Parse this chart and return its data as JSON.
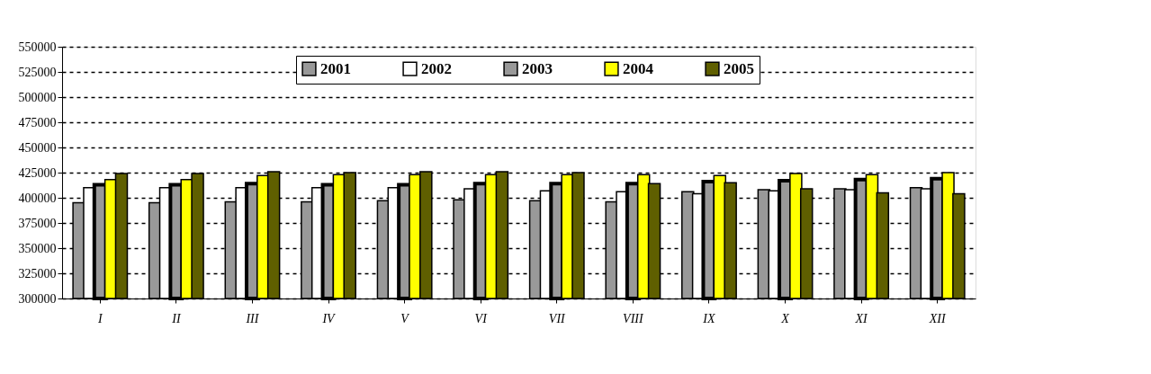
{
  "chart_data": {
    "type": "bar",
    "categories": [
      "I",
      "II",
      "III",
      "IV",
      "V",
      "VI",
      "VII",
      "VIII",
      "IX",
      "X",
      "XI",
      "XII"
    ],
    "series": [
      {
        "name": "2001",
        "color": "#999999",
        "values": [
          395000,
          395000,
          396000,
          396000,
          397000,
          398000,
          397000,
          396000,
          406000,
          408000,
          409000,
          410000
        ]
      },
      {
        "name": "2002",
        "color": "#ffffff",
        "values": [
          410000,
          410000,
          410000,
          410000,
          410000,
          409000,
          407000,
          406000,
          404000,
          407000,
          408000,
          409000
        ]
      },
      {
        "name": "2003",
        "color": "#999999",
        "values": [
          413000,
          413000,
          414000,
          413000,
          413000,
          414000,
          414000,
          414000,
          416000,
          417000,
          418000,
          419000
        ]
      },
      {
        "name": "2004",
        "color": "#ffff00",
        "values": [
          418000,
          418000,
          422000,
          423000,
          423000,
          423000,
          423000,
          423000,
          422000,
          424000,
          423000,
          425000
        ]
      },
      {
        "name": "2005",
        "color": "#5f5f00",
        "values": [
          424000,
          424000,
          426000,
          425000,
          426000,
          426000,
          425000,
          414000,
          415000,
          409000,
          405000,
          404000
        ]
      }
    ],
    "ylim": [
      300000,
      550000
    ],
    "yticks": [
      300000,
      325000,
      350000,
      375000,
      400000,
      425000,
      450000,
      475000,
      500000,
      525000,
      550000
    ],
    "grid": "y",
    "legend": "top"
  }
}
